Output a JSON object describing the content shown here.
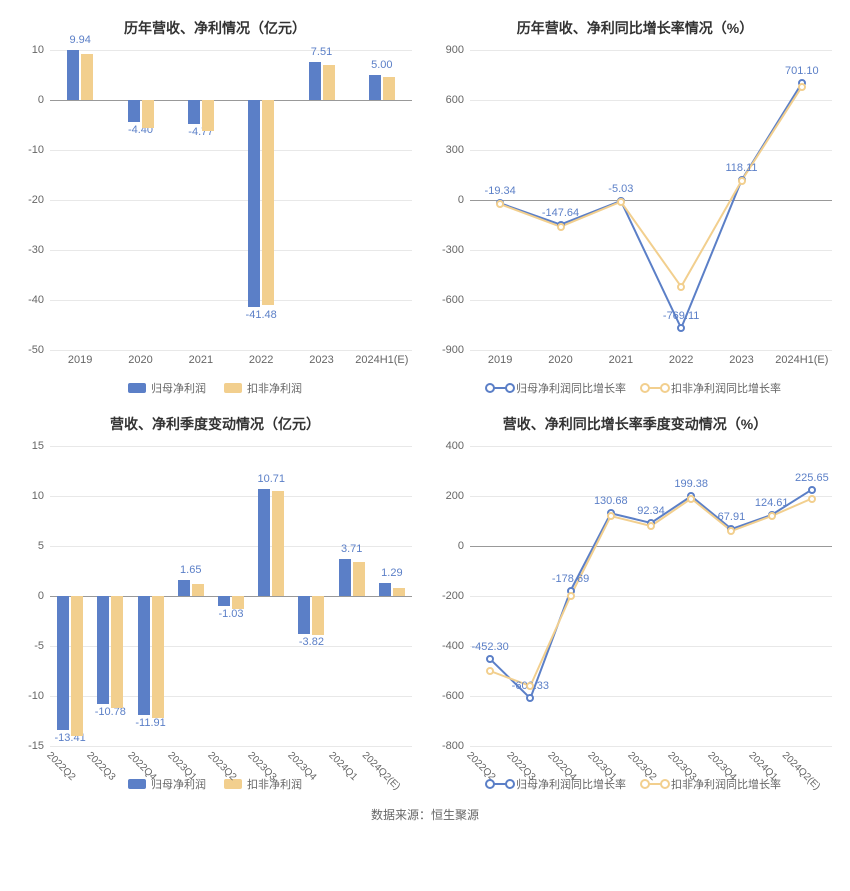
{
  "colors": {
    "series_a": "#5b7fc7",
    "series_b": "#f2cf8e",
    "label_a": "#5b7fc7",
    "label_b": "#d9a24a",
    "grid": "#e8e8e8",
    "axis": "#666666",
    "zero": "#999999",
    "bg": "#ffffff"
  },
  "footer": "数据来源：恒生聚源",
  "panels": [
    {
      "id": "p1",
      "title": "历年营收、净利情况（亿元）",
      "type": "bar",
      "categories": [
        "2019",
        "2020",
        "2021",
        "2022",
        "2023",
        "2024H1(E)"
      ],
      "rotate_x": false,
      "series": [
        {
          "name": "归母净利润",
          "color_key": "series_a",
          "label_color_key": "label_a",
          "values": [
            9.94,
            -4.4,
            -4.77,
            -41.48,
            7.51,
            5.0
          ],
          "show_labels": [
            true,
            true,
            true,
            true,
            true,
            true
          ]
        },
        {
          "name": "扣非净利润",
          "color_key": "series_b",
          "label_color_key": "label_b",
          "values": [
            9.3,
            -5.5,
            -6.1,
            -41.0,
            7.0,
            4.7
          ],
          "show_labels": [
            false,
            false,
            false,
            false,
            false,
            false
          ]
        }
      ],
      "ylim": [
        -50,
        10
      ],
      "ytick_step": 10,
      "legend": [
        {
          "label": "归母净利润",
          "swatch": "bar",
          "color_key": "series_a"
        },
        {
          "label": "扣非净利润",
          "swatch": "bar",
          "color_key": "series_b"
        }
      ]
    },
    {
      "id": "p2",
      "title": "历年营收、净利同比增长率情况（%）",
      "type": "line",
      "categories": [
        "2019",
        "2020",
        "2021",
        "2022",
        "2023",
        "2024H1(E)"
      ],
      "rotate_x": false,
      "series": [
        {
          "name": "归母净利润同比增长率",
          "color_key": "series_a",
          "label_color_key": "label_a",
          "values": [
            -19.34,
            -147.64,
            -5.03,
            -769.11,
            118.11,
            701.1
          ],
          "show_labels": [
            true,
            true,
            true,
            true,
            true,
            true
          ]
        },
        {
          "name": "扣非净利润同比增长率",
          "color_key": "series_b",
          "label_color_key": "label_b",
          "values": [
            -25,
            -160,
            -10,
            -520,
            115,
            680
          ],
          "show_labels": [
            false,
            false,
            false,
            false,
            false,
            false
          ]
        }
      ],
      "ylim": [
        -900,
        900
      ],
      "ytick_step": 300,
      "legend": [
        {
          "label": "归母净利润同比增长率",
          "swatch": "line",
          "color_key": "series_a"
        },
        {
          "label": "扣非净利润同比增长率",
          "swatch": "line",
          "color_key": "series_b"
        }
      ]
    },
    {
      "id": "p3",
      "title": "营收、净利季度变动情况（亿元）",
      "type": "bar",
      "categories": [
        "2022Q2",
        "2022Q3",
        "2022Q4",
        "2023Q1",
        "2023Q2",
        "2023Q3",
        "2023Q4",
        "2024Q1",
        "2024Q2(E)"
      ],
      "rotate_x": true,
      "series": [
        {
          "name": "归母净利润",
          "color_key": "series_a",
          "label_color_key": "label_a",
          "values": [
            -13.41,
            -10.78,
            -11.91,
            1.65,
            -1.03,
            10.71,
            -3.82,
            3.71,
            1.29
          ],
          "show_labels": [
            true,
            true,
            true,
            true,
            true,
            true,
            true,
            true,
            true
          ]
        },
        {
          "name": "扣非净利润",
          "color_key": "series_b",
          "label_color_key": "label_b",
          "values": [
            -14.0,
            -11.2,
            -12.2,
            1.2,
            -1.3,
            10.5,
            -3.9,
            3.4,
            0.8
          ],
          "show_labels": [
            false,
            false,
            false,
            false,
            false,
            false,
            false,
            false,
            false
          ]
        }
      ],
      "ylim": [
        -15,
        15
      ],
      "ytick_step": 5,
      "legend": [
        {
          "label": "归母净利润",
          "swatch": "bar",
          "color_key": "series_a"
        },
        {
          "label": "扣非净利润",
          "swatch": "bar",
          "color_key": "series_b"
        }
      ]
    },
    {
      "id": "p4",
      "title": "营收、净利同比增长率季度变动情况（%）",
      "type": "line",
      "categories": [
        "2022Q2",
        "2022Q3",
        "2022Q4",
        "2023Q1",
        "2023Q2",
        "2023Q3",
        "2023Q4",
        "2024Q1",
        "2024Q2(E)"
      ],
      "rotate_x": true,
      "series": [
        {
          "name": "归母净利润同比增长率",
          "color_key": "series_a",
          "label_color_key": "label_a",
          "values": [
            -452.3,
            -609.33,
            -178.69,
            130.68,
            92.34,
            199.38,
            67.91,
            124.61,
            225.65
          ],
          "show_labels": [
            true,
            true,
            true,
            true,
            true,
            true,
            true,
            true,
            true
          ]
        },
        {
          "name": "扣非净利润同比增长率",
          "color_key": "series_b",
          "label_color_key": "label_b",
          "values": [
            -500,
            -560,
            -200,
            120,
            80,
            190,
            60,
            120,
            190
          ],
          "show_labels": [
            false,
            false,
            false,
            false,
            false,
            false,
            false,
            false,
            false
          ]
        }
      ],
      "ylim": [
        -800,
        400
      ],
      "ytick_step": 200,
      "legend": [
        {
          "label": "归母净利润同比增长率",
          "swatch": "line",
          "color_key": "series_a"
        },
        {
          "label": "扣非净利润同比增长率",
          "swatch": "line",
          "color_key": "series_b"
        }
      ]
    }
  ]
}
